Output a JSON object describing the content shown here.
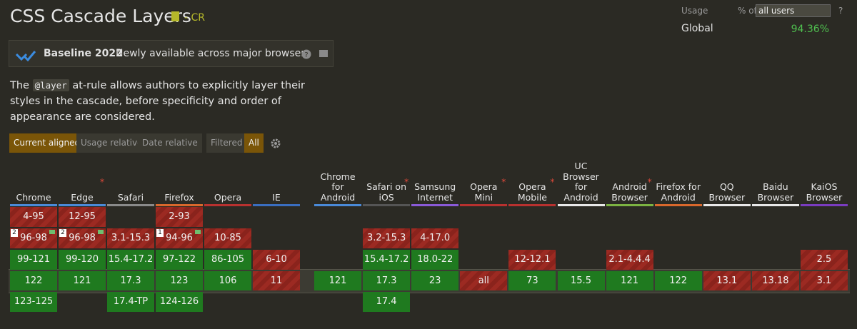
{
  "header": {
    "title": "CSS Cascade Layers",
    "status": "- CR"
  },
  "usage": {
    "label": "Usage",
    "scope": "% of",
    "select": "all users",
    "help": "?",
    "region": "Global",
    "value": "94.36%"
  },
  "baseline": {
    "title": "Baseline 2022",
    "text": "Newly available across major browsers"
  },
  "description": {
    "before": "The",
    "code": "@layer",
    "after": "at-rule allows authors to explicitly layer their styles in the cascade, before specificity and order of appearance are considered."
  },
  "tabs": [
    "Current aligned",
    "Usage relative",
    "Date relative"
  ],
  "filters": [
    "Filtered",
    "All"
  ],
  "browsers": [
    {
      "name": "Chrome",
      "color": "#4a8ad8",
      "star": false,
      "cells": [
        {
          "text": "4-95",
          "support": "n"
        },
        {
          "text": "96-98",
          "support": "n",
          "note": "2",
          "flag": true
        },
        {
          "text": "99-121",
          "support": "y"
        },
        {
          "text": "122",
          "support": "y"
        },
        {
          "text": "123-125",
          "support": "y"
        }
      ]
    },
    {
      "name": "Edge",
      "color": "#4a8ad8",
      "star": true,
      "cells": [
        {
          "text": "12-95",
          "support": "n"
        },
        {
          "text": "96-98",
          "support": "n",
          "note": "2",
          "flag": true
        },
        {
          "text": "99-120",
          "support": "y"
        },
        {
          "text": "121",
          "support": "y"
        },
        null
      ]
    },
    {
      "name": "Safari",
      "color": "#8a8a8a",
      "star": false,
      "cells": [
        null,
        {
          "text": "3.1-15.3",
          "support": "n"
        },
        {
          "text": "15.4-17.2",
          "support": "y"
        },
        {
          "text": "17.3",
          "support": "y"
        },
        {
          "text": "17.4-TP",
          "support": "y"
        }
      ]
    },
    {
      "name": "Firefox",
      "color": "#d9682c",
      "star": false,
      "cells": [
        {
          "text": "2-93",
          "support": "n"
        },
        {
          "text": "94-96",
          "support": "n",
          "note": "1",
          "flag": true
        },
        {
          "text": "97-122",
          "support": "y"
        },
        {
          "text": "123",
          "support": "y"
        },
        {
          "text": "124-126",
          "support": "y"
        }
      ]
    },
    {
      "name": "Opera",
      "color": "#b8312f",
      "star": false,
      "cells": [
        null,
        {
          "text": "10-85",
          "support": "n"
        },
        {
          "text": "86-105",
          "support": "y"
        },
        {
          "text": "106",
          "support": "y"
        },
        null
      ]
    },
    {
      "name": "IE",
      "color": "#3a6ec0",
      "star": false,
      "cells": [
        null,
        null,
        {
          "text": "6-10",
          "support": "n"
        },
        {
          "text": "11",
          "support": "n"
        },
        null
      ]
    },
    {
      "name": "Chrome for Android",
      "color": "#4a8ad8",
      "star": false,
      "cells": [
        null,
        null,
        null,
        {
          "text": "121",
          "support": "y"
        },
        null
      ]
    },
    {
      "name": "Safari on iOS",
      "color": "#555555",
      "star": true,
      "cells": [
        null,
        {
          "text": "3.2-15.3",
          "support": "n"
        },
        {
          "text": "15.4-17.2",
          "support": "y"
        },
        {
          "text": "17.3",
          "support": "y"
        },
        {
          "text": "17.4",
          "support": "y"
        }
      ]
    },
    {
      "name": "Samsung Internet",
      "color": "#8a5ad8",
      "star": false,
      "cells": [
        null,
        {
          "text": "4-17.0",
          "support": "n"
        },
        {
          "text": "18.0-22",
          "support": "y"
        },
        {
          "text": "23",
          "support": "y"
        },
        null
      ]
    },
    {
      "name": "Opera Mini",
      "color": "#b8312f",
      "star": true,
      "cells": [
        null,
        null,
        null,
        {
          "text": "all",
          "support": "n"
        },
        null
      ]
    },
    {
      "name": "Opera Mobile",
      "color": "#b8312f",
      "star": true,
      "cells": [
        null,
        null,
        {
          "text": "12-12.1",
          "support": "n"
        },
        {
          "text": "73",
          "support": "y"
        },
        null
      ]
    },
    {
      "name": "UC Browser for Android",
      "color": "#e8e8e8",
      "star": false,
      "cells": [
        null,
        null,
        null,
        {
          "text": "15.5",
          "support": "y"
        },
        null
      ]
    },
    {
      "name": "Android Browser",
      "color": "#7cb342",
      "star": true,
      "cells": [
        null,
        null,
        {
          "text": "2.1-4.4.4",
          "support": "n"
        },
        {
          "text": "121",
          "support": "y"
        },
        null
      ]
    },
    {
      "name": "Firefox for Android",
      "color": "#d9682c",
      "star": false,
      "cells": [
        null,
        null,
        null,
        {
          "text": "122",
          "support": "y"
        },
        null
      ]
    },
    {
      "name": "QQ Browser",
      "color": "#e8e8e8",
      "star": false,
      "cells": [
        null,
        null,
        null,
        {
          "text": "13.1",
          "support": "n"
        },
        null
      ]
    },
    {
      "name": "Baidu Browser",
      "color": "#e8e8e8",
      "star": false,
      "cells": [
        null,
        null,
        null,
        {
          "text": "13.18",
          "support": "n"
        },
        null
      ]
    },
    {
      "name": "KaiOS Browser",
      "color": "#7a3cc0",
      "star": false,
      "cells": [
        null,
        null,
        {
          "text": "2.5",
          "support": "n"
        },
        {
          "text": "3.1",
          "support": "n"
        },
        null
      ]
    }
  ]
}
